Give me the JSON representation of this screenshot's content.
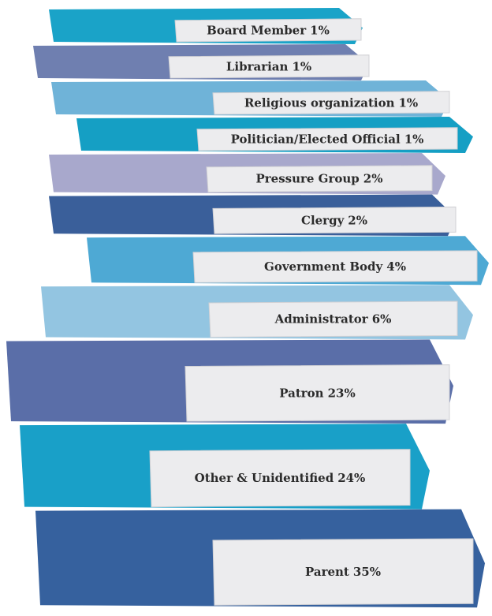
{
  "chart_data": {
    "type": "book-stack",
    "categories": [
      "Board Member",
      "Librarian",
      "Religious organization",
      "Politician/Elected Official",
      "Pressure Group",
      "Clergy",
      "Government Body",
      "Administrator",
      "Patron",
      "Other & Unidentified",
      "Parent"
    ],
    "values": [
      1,
      1,
      1,
      1,
      2,
      2,
      4,
      6,
      23,
      24,
      35
    ],
    "value_labels": [
      "1%",
      "1%",
      "1%",
      "1%",
      "2%",
      "2%",
      "4%",
      "6%",
      "23%",
      "24%",
      "35%"
    ],
    "colors": [
      "#1aa3c8",
      "#6f7fb0",
      "#6fb3d8",
      "#159fc4",
      "#a8a8cc",
      "#3a5f9a",
      "#4ea9d4",
      "#93c5e1",
      "#5a6ea8",
      "#19a0c8",
      "#36619e"
    ]
  }
}
